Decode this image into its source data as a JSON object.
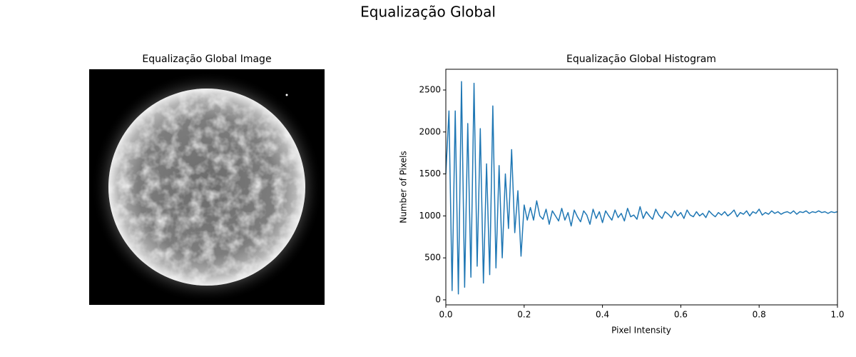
{
  "title": "Equalização Global",
  "chart_data": [
    {
      "type": "image",
      "title": "Equalização Global Image"
    },
    {
      "type": "line",
      "title": "Equalização Global Histogram",
      "x_label": "Pixel Intensity",
      "y_label": "Number of Pixels",
      "x": [
        0,
        0.008,
        0.016,
        0.024,
        0.032,
        0.04,
        0.048,
        0.056,
        0.064,
        0.072,
        0.08,
        0.088,
        0.096,
        0.104,
        0.112,
        0.12,
        0.128,
        0.136,
        0.144,
        0.152,
        0.16,
        0.168,
        0.176,
        0.184,
        0.192,
        0.2,
        0.208,
        0.216,
        0.224,
        0.232,
        0.24,
        0.248,
        0.256,
        0.264,
        0.272,
        0.28,
        0.288,
        0.296,
        0.304,
        0.312,
        0.32,
        0.328,
        0.336,
        0.344,
        0.352,
        0.36,
        0.368,
        0.376,
        0.384,
        0.392,
        0.4,
        0.408,
        0.416,
        0.424,
        0.432,
        0.44,
        0.448,
        0.456,
        0.464,
        0.472,
        0.48,
        0.488,
        0.496,
        0.504,
        0.512,
        0.52,
        0.528,
        0.536,
        0.544,
        0.552,
        0.56,
        0.568,
        0.576,
        0.584,
        0.592,
        0.6,
        0.608,
        0.616,
        0.624,
        0.632,
        0.64,
        0.648,
        0.656,
        0.664,
        0.672,
        0.68,
        0.688,
        0.696,
        0.704,
        0.712,
        0.72,
        0.728,
        0.736,
        0.744,
        0.752,
        0.76,
        0.768,
        0.776,
        0.784,
        0.792,
        0.8,
        0.808,
        0.816,
        0.824,
        0.832,
        0.84,
        0.848,
        0.856,
        0.864,
        0.872,
        0.88,
        0.888,
        0.896,
        0.904,
        0.912,
        0.92,
        0.928,
        0.936,
        0.944,
        0.952,
        0.96,
        0.968,
        0.976,
        0.984,
        0.992,
        1.0
      ],
      "series": [
        {
          "color": "#1f77b4",
          "values": [
            1500,
            2250,
            110,
            2250,
            70,
            2600,
            150,
            2100,
            270,
            2580,
            400,
            2040,
            200,
            1620,
            300,
            2310,
            380,
            1600,
            500,
            1500,
            850,
            1790,
            800,
            1300,
            520,
            1130,
            950,
            1100,
            950,
            1180,
            1000,
            960,
            1080,
            900,
            1060,
            1000,
            940,
            1090,
            950,
            1040,
            880,
            1070,
            990,
            930,
            1060,
            1010,
            900,
            1080,
            970,
            1050,
            920,
            1060,
            1000,
            950,
            1070,
            980,
            1030,
            940,
            1090,
            990,
            1010,
            960,
            1110,
            970,
            1050,
            1000,
            960,
            1080,
            1010,
            970,
            1050,
            1020,
            980,
            1060,
            1000,
            1040,
            970,
            1070,
            1010,
            990,
            1050,
            1000,
            1030,
            980,
            1060,
            1020,
            990,
            1040,
            1010,
            1050,
            1000,
            1030,
            1070,
            990,
            1040,
            1020,
            1060,
            1000,
            1050,
            1030,
            1080,
            1010,
            1040,
            1020,
            1060,
            1030,
            1050,
            1020,
            1040,
            1050,
            1030,
            1060,
            1020,
            1050,
            1040,
            1060,
            1030,
            1050,
            1040,
            1060,
            1040,
            1050,
            1030,
            1050,
            1040,
            1050
          ]
        }
      ],
      "xlim": [
        0,
        1
      ],
      "ylim": [
        -60,
        2747
      ],
      "xticks": [
        {
          "value": 0,
          "label": "0.0"
        },
        {
          "value": 0.2,
          "label": "0.2"
        },
        {
          "value": 0.4,
          "label": "0.4"
        },
        {
          "value": 0.6,
          "label": "0.6"
        },
        {
          "value": 0.8,
          "label": "0.8"
        },
        {
          "value": 1,
          "label": "1.0"
        }
      ],
      "yticks": [
        0,
        500,
        1000,
        1500,
        2000,
        2500
      ]
    }
  ]
}
